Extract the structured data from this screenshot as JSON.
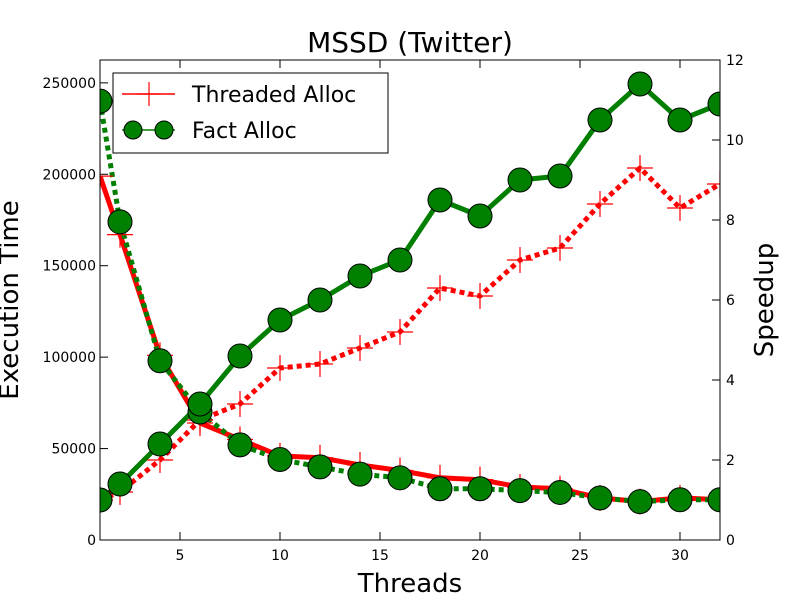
{
  "chart_data": {
    "type": "line",
    "title": "MSSD (Twitter)",
    "xlabel": "Threads",
    "ylabel_left": "Execution Time",
    "ylabel_right": "Speedup",
    "xlim": [
      1,
      32
    ],
    "ylim_left": [
      0,
      262500
    ],
    "ylim_right": [
      0,
      12
    ],
    "x_ticks": [
      5,
      10,
      15,
      20,
      25,
      30
    ],
    "x_tick_labels": [
      "5",
      "10",
      "15",
      "20",
      "25",
      "30"
    ],
    "y_left_ticks": [
      0,
      50000,
      100000,
      150000,
      200000,
      250000
    ],
    "y_left_tick_labels": [
      "0",
      "50000",
      "100000",
      "150000",
      "200000",
      "250000"
    ],
    "y_right_ticks": [
      0,
      2,
      4,
      6,
      8,
      10,
      12
    ],
    "y_right_tick_labels": [
      "0",
      "2",
      "4",
      "6",
      "8",
      "10",
      "12"
    ],
    "legend_position": "top-left",
    "x": [
      1,
      2,
      4,
      6,
      8,
      10,
      12,
      14,
      16,
      18,
      20,
      22,
      24,
      26,
      28,
      30,
      32
    ],
    "series": [
      {
        "name": "Threaded Alloc",
        "axis": "left",
        "style": "solid",
        "marker": "plus",
        "color": "#ff0000",
        "values": [
          199000,
          167000,
          101000,
          64000,
          55000,
          46000,
          45000,
          41000,
          38000,
          34000,
          33000,
          29000,
          28000,
          23000,
          21000,
          23000,
          22000
        ]
      },
      {
        "name": "Threaded Alloc",
        "axis": "right",
        "style": "dotted",
        "marker": "plus",
        "color": "#ff0000",
        "values": [
          1.0,
          1.2,
          2.0,
          3.0,
          3.4,
          4.3,
          4.4,
          4.8,
          5.2,
          6.3,
          6.1,
          7.0,
          7.3,
          8.4,
          9.3,
          8.3,
          8.9
        ]
      },
      {
        "name": "Fact Alloc",
        "axis": "left",
        "style": "dotted",
        "marker": "circle",
        "color": "#007f00",
        "values": [
          240000,
          174000,
          98000,
          70000,
          52000,
          44000,
          40000,
          36000,
          34000,
          28000,
          28000,
          27000,
          26000,
          23000,
          21000,
          22000,
          22000
        ]
      },
      {
        "name": "Fact Alloc",
        "axis": "right",
        "style": "solid",
        "marker": "circle",
        "color": "#007f00",
        "values": [
          1.0,
          1.4,
          2.4,
          3.4,
          4.6,
          5.5,
          6.0,
          6.6,
          7.0,
          8.5,
          8.1,
          9.0,
          9.1,
          10.5,
          11.4,
          10.5,
          10.9
        ]
      }
    ]
  }
}
